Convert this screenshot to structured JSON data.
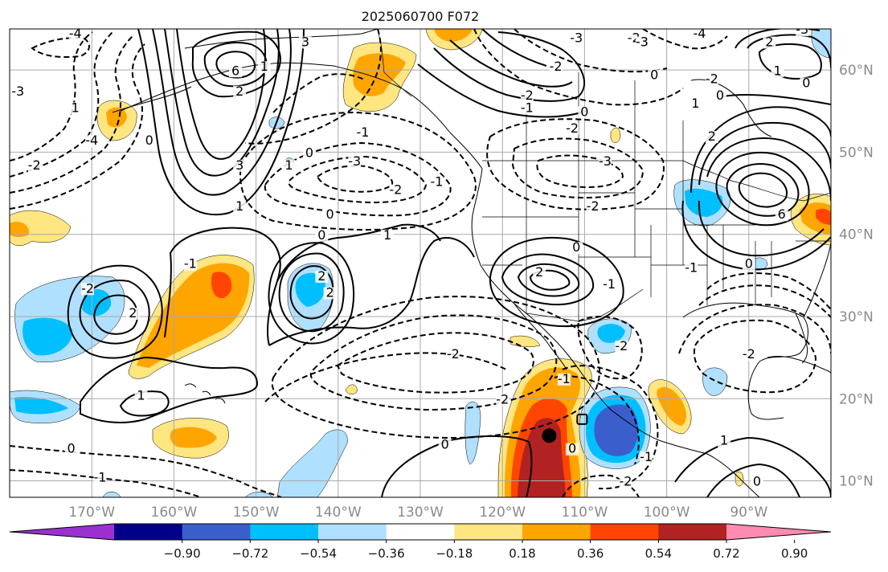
{
  "title": "2025060700 F072",
  "map": {
    "lon_range": [
      -180,
      -80
    ],
    "lat_range": [
      8,
      65
    ],
    "lat_ticks": [
      {
        "value": 10,
        "label": "10°N"
      },
      {
        "value": 20,
        "label": "20°N"
      },
      {
        "value": 30,
        "label": "30°N"
      },
      {
        "value": 40,
        "label": "40°N"
      },
      {
        "value": 50,
        "label": "50°N"
      },
      {
        "value": 60,
        "label": "60°N"
      }
    ],
    "lon_ticks": [
      {
        "value": -170,
        "label": "170°W"
      },
      {
        "value": -160,
        "label": "160°W"
      },
      {
        "value": -150,
        "label": "150°W"
      },
      {
        "value": -140,
        "label": "140°W"
      },
      {
        "value": -130,
        "label": "130°W"
      },
      {
        "value": -120,
        "label": "120°W"
      },
      {
        "value": -110,
        "label": "110°W"
      },
      {
        "value": -100,
        "label": "100°W"
      },
      {
        "value": -90,
        "label": "90°W"
      }
    ],
    "marker": {
      "lon": -114.3,
      "lat": 15.5,
      "color": "#000000"
    },
    "box_marker": {
      "lon": -110.3,
      "lat": 17.5
    }
  },
  "colorbar": {
    "colors": [
      "#9b30d0",
      "#00008b",
      "#3a5fcd",
      "#00bfff",
      "#b0e0ff",
      "#ffffff",
      "#ffe680",
      "#ffa500",
      "#ff4500",
      "#b22222",
      "#ff8cb0"
    ],
    "tick_labels": [
      "−0.90",
      "−0.72",
      "−0.54",
      "−0.36",
      "−0.18",
      "0.18",
      "0.36",
      "0.54",
      "0.72",
      "0.90"
    ]
  },
  "contour_labels": [
    {
      "text": "-4",
      "lon": -172,
      "lat": 64
    },
    {
      "text": "-3",
      "lon": -179,
      "lat": 57
    },
    {
      "text": "-2",
      "lon": -177,
      "lat": 48
    },
    {
      "text": "-4",
      "lon": -170,
      "lat": 51
    },
    {
      "text": "0",
      "lon": -163,
      "lat": 51
    },
    {
      "text": "3",
      "lon": -152,
      "lat": 48
    },
    {
      "text": "6",
      "lon": -152.5,
      "lat": 59.5
    },
    {
      "text": "1",
      "lon": -149,
      "lat": 60
    },
    {
      "text": "2",
      "lon": -152,
      "lat": 57
    },
    {
      "text": "3",
      "lon": -144,
      "lat": 63
    },
    {
      "text": "1",
      "lon": -146,
      "lat": 48
    },
    {
      "text": "0",
      "lon": -143.5,
      "lat": 49.5
    },
    {
      "text": "1",
      "lon": -152,
      "lat": 43
    },
    {
      "text": "-1",
      "lon": -137,
      "lat": 52
    },
    {
      "text": "-3",
      "lon": -138,
      "lat": 48.5
    },
    {
      "text": "-2",
      "lon": -133,
      "lat": 45
    },
    {
      "text": "-1",
      "lon": -128,
      "lat": 46
    },
    {
      "text": "0",
      "lon": -141,
      "lat": 42
    },
    {
      "text": "0",
      "lon": -142,
      "lat": 39.5
    },
    {
      "text": "1",
      "lon": -134,
      "lat": 39.5
    },
    {
      "text": "2",
      "lon": -142,
      "lat": 34.5
    },
    {
      "text": "2",
      "lon": -141,
      "lat": 32.5
    },
    {
      "text": "-1",
      "lon": -158,
      "lat": 36
    },
    {
      "text": "-2",
      "lon": -170.5,
      "lat": 33
    },
    {
      "text": "2",
      "lon": -165,
      "lat": 30
    },
    {
      "text": "1",
      "lon": -164,
      "lat": 20
    },
    {
      "text": "1",
      "lon": -172,
      "lat": 55
    },
    {
      "text": "-2",
      "lon": -126,
      "lat": 25
    },
    {
      "text": "-2",
      "lon": -120,
      "lat": 19.5
    },
    {
      "text": "0",
      "lon": -127,
      "lat": 14
    },
    {
      "text": "-1",
      "lon": -169,
      "lat": 10
    },
    {
      "text": "0",
      "lon": -172.5,
      "lat": 13.5
    },
    {
      "text": "-2",
      "lon": -113.5,
      "lat": 60
    },
    {
      "text": "-3",
      "lon": -111,
      "lat": 63.5
    },
    {
      "text": "-2",
      "lon": -104,
      "lat": 63.5
    },
    {
      "text": "-3",
      "lon": -103,
      "lat": 63
    },
    {
      "text": "-4",
      "lon": -96,
      "lat": 64
    },
    {
      "text": "-2",
      "lon": -117,
      "lat": 56.5
    },
    {
      "text": "-1",
      "lon": -117,
      "lat": 55
    },
    {
      "text": "0",
      "lon": -110,
      "lat": 54.5
    },
    {
      "text": "-2",
      "lon": -111.5,
      "lat": 52.5
    },
    {
      "text": "-3",
      "lon": -107.5,
      "lat": 48.5
    },
    {
      "text": "-2",
      "lon": -109,
      "lat": 43
    },
    {
      "text": "0",
      "lon": -101.5,
      "lat": 59
    },
    {
      "text": "1",
      "lon": -96.5,
      "lat": 55.5
    },
    {
      "text": "0",
      "lon": -93.5,
      "lat": 56.5
    },
    {
      "text": "-2",
      "lon": -94.5,
      "lat": 58.5
    },
    {
      "text": "2",
      "lon": -87.5,
      "lat": 63
    },
    {
      "text": "1",
      "lon": -86.5,
      "lat": 59.5
    },
    {
      "text": "0",
      "lon": -83,
      "lat": 58
    },
    {
      "text": "-3",
      "lon": -83.5,
      "lat": 64.5
    },
    {
      "text": "2",
      "lon": -94.5,
      "lat": 51.5
    },
    {
      "text": "6",
      "lon": -86,
      "lat": 42
    },
    {
      "text": "0",
      "lon": -111,
      "lat": 38
    },
    {
      "text": "2",
      "lon": -115.5,
      "lat": 35
    },
    {
      "text": "-1",
      "lon": -107,
      "lat": 33.5
    },
    {
      "text": "-2",
      "lon": -105.5,
      "lat": 26
    },
    {
      "text": "-1",
      "lon": -112.5,
      "lat": 22
    },
    {
      "text": "0",
      "lon": -111.5,
      "lat": 13.5
    },
    {
      "text": "-1",
      "lon": -102.5,
      "lat": 12.5
    },
    {
      "text": "-2",
      "lon": -105,
      "lat": 9.5
    },
    {
      "text": "1",
      "lon": -93,
      "lat": 14.5
    },
    {
      "text": "0",
      "lon": -89,
      "lat": 9.5
    },
    {
      "text": "0",
      "lon": -90,
      "lat": 36
    },
    {
      "text": "-1",
      "lon": -97,
      "lat": 35.5
    },
    {
      "text": "-2",
      "lon": -90,
      "lat": 25
    }
  ]
}
